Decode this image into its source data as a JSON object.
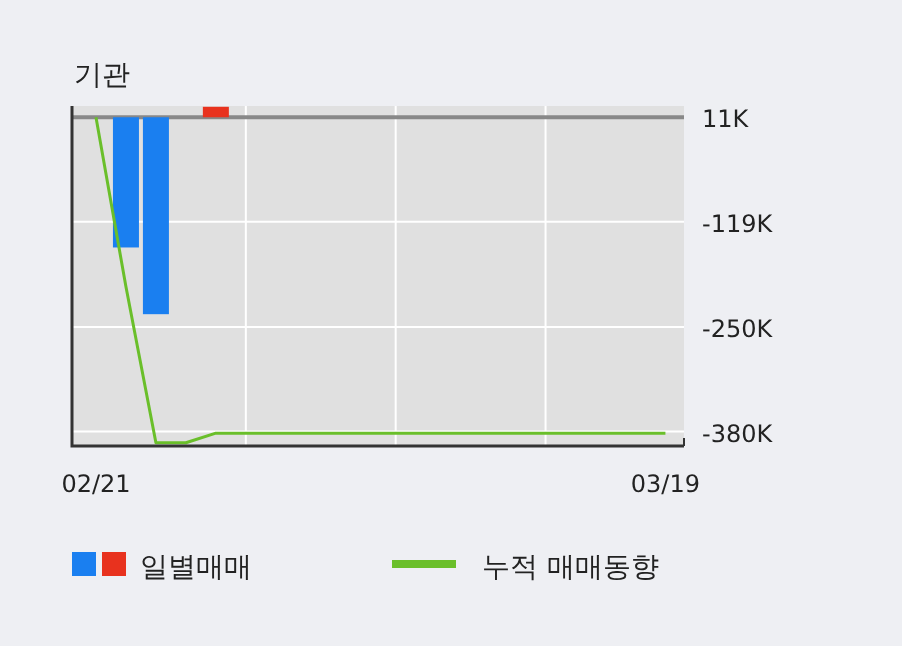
{
  "chart_data": {
    "type": "bar",
    "title": "기관",
    "categories": [
      "02/21",
      null,
      null,
      null,
      null,
      null,
      null,
      null,
      null,
      null,
      null,
      null,
      null,
      null,
      null,
      null,
      null,
      null,
      null,
      "03/19"
    ],
    "series": [
      {
        "name": "일별매매",
        "base": [
          null,
          11,
          11,
          null,
          11,
          null,
          null,
          null,
          null,
          null,
          null,
          null,
          null,
          null,
          null,
          null,
          null,
          null,
          null,
          null
        ],
        "colors": [
          "#1a7ff0",
          "#1a7ff0",
          "#1a7ff0",
          "#1a7ff0",
          "#e8321e",
          "#1a7ff0",
          "#1a7ff0",
          "#1a7ff0",
          "#1a7ff0",
          "#1a7ff0",
          "#1a7ff0",
          "#1a7ff0",
          "#1a7ff0",
          "#1a7ff0",
          "#1a7ff0",
          "#1a7ff0",
          "#1a7ff0",
          "#1a7ff0",
          "#1a7ff0",
          "#1a7ff0"
        ],
        "values": [
          null,
          -162,
          -245,
          null,
          13,
          null,
          null,
          null,
          null,
          null,
          null,
          null,
          null,
          null,
          null,
          null,
          null,
          null,
          null,
          null
        ]
      },
      {
        "name": "누적 매매동향",
        "type": "line",
        "color": "#6abf2a",
        "values": [
          11,
          -200,
          -394,
          -394,
          -382,
          -382,
          -382,
          -382,
          -382,
          -382,
          -382,
          -382,
          -382,
          -382,
          -382,
          -382,
          -382,
          -382,
          -382,
          -382
        ]
      }
    ],
    "ylim": [
      -398,
      25
    ],
    "yticks": [
      {
        "value": 11,
        "label": "11K"
      },
      {
        "value": -119,
        "label": "-119K"
      },
      {
        "value": -250,
        "label": "-250K"
      },
      {
        "value": -380,
        "label": "-380K"
      }
    ],
    "ref_lines": [
      {
        "axis": "y",
        "value": 11,
        "color": "#888888"
      }
    ],
    "grid": true,
    "legend": "bottom"
  }
}
